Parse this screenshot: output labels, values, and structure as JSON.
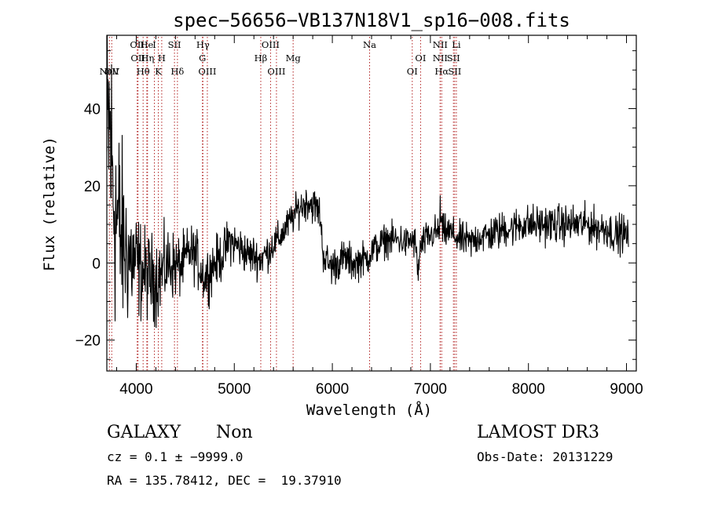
{
  "chart_data": {
    "type": "line",
    "title": "spec−56656−VB137N18V1_sp16−008.fits",
    "xlabel": "Wavelength (Å)",
    "ylabel": "Flux (relative)",
    "xlim": [
      3700,
      9100
    ],
    "ylim": [
      -28,
      59
    ],
    "xticks": [
      4000,
      5000,
      6000,
      7000,
      8000,
      9000
    ],
    "xtick_labels": [
      "4000",
      "5000",
      "6000",
      "7000",
      "8000",
      "9000"
    ],
    "yticks": [
      -20,
      0,
      20,
      40
    ],
    "ytick_labels": [
      "−20",
      "0",
      "20",
      "40"
    ],
    "grid": false,
    "line_color": "#000000",
    "marker_color": "#b22222",
    "spectrum_anchors": {
      "x": [
        3700,
        3720,
        3740,
        3760,
        3800,
        3850,
        3900,
        3950,
        4000,
        4050,
        4100,
        4150,
        4200,
        4250,
        4300,
        4350,
        4400,
        4450,
        4500,
        4550,
        4600,
        4650,
        4700,
        4750,
        4800,
        4850,
        4900,
        4950,
        5000,
        5050,
        5100,
        5150,
        5200,
        5250,
        5270,
        5300,
        5350,
        5400,
        5450,
        5500,
        5550,
        5600,
        5650,
        5700,
        5750,
        5800,
        5850,
        5880,
        5900,
        5950,
        6000,
        6050,
        6100,
        6150,
        6200,
        6250,
        6300,
        6350,
        6400,
        6450,
        6500,
        6550,
        6600,
        6650,
        6700,
        6750,
        6800,
        6850,
        6870,
        6900,
        6950,
        7000,
        7050,
        7090,
        7100,
        7110,
        7130,
        7150,
        7200,
        7250,
        7300,
        7350,
        7400,
        7450,
        7500,
        7550,
        7600,
        7650,
        7700,
        7750,
        7800,
        7850,
        7900,
        7950,
        8000,
        8100,
        8200,
        8300,
        8400,
        8500,
        8600,
        8700,
        8800,
        8900,
        8950,
        9000
      ],
      "y": [
        25,
        35,
        30,
        20,
        12,
        6,
        3,
        1,
        0,
        -2,
        -3,
        -4,
        -4,
        -3,
        -1,
        0,
        -1,
        -1,
        1,
        3,
        2,
        -1,
        -4,
        -2,
        0,
        1,
        3,
        6,
        5,
        4,
        3,
        2,
        2,
        1,
        1,
        2,
        3,
        5,
        6,
        8,
        10,
        12,
        14,
        15,
        16,
        15,
        14,
        12,
        3,
        0,
        -1,
        0,
        1,
        1,
        0,
        0,
        1,
        1,
        3,
        4,
        5,
        6,
        6,
        6,
        6,
        5,
        6,
        5,
        -3,
        4,
        6,
        7,
        8,
        8,
        14,
        10,
        8,
        8,
        8,
        7,
        6,
        6,
        5,
        6,
        7,
        7,
        7,
        8,
        8,
        9,
        9,
        9,
        10,
        10,
        10,
        10,
        10,
        10,
        10,
        10,
        10,
        9,
        9,
        7,
        8,
        7
      ]
    },
    "spectrum_noise": {
      "x": [
        3700,
        3800,
        3900,
        4000,
        4100,
        4200,
        4300,
        4400,
        4500,
        4700,
        5000,
        5500,
        6000,
        6500,
        7000,
        8000,
        9000
      ],
      "amp": [
        30,
        22,
        14,
        10,
        8,
        8,
        7,
        6,
        5,
        5,
        4,
        3,
        3.5,
        3,
        3,
        3.5,
        3.5
      ]
    },
    "spectral_lines": [
      {
        "name": "NeV",
        "wavelength": 3726,
        "row": 3
      },
      {
        "name": "OII",
        "wavelength": 3750,
        "row": 3
      },
      {
        "name": "OII",
        "wavelength": 4010,
        "row": 1
      },
      {
        "name": "OII",
        "wavelength": 4018,
        "row": 2
      },
      {
        "name": "Hθ",
        "wavelength": 4070,
        "row": 3
      },
      {
        "name": "He",
        "wavelength": 4108,
        "row": 1
      },
      {
        "name": "Hη",
        "wavelength": 4115,
        "row": 2
      },
      {
        "name": "I",
        "wavelength": 4185,
        "row": 1
      },
      {
        "name": "K",
        "wavelength": 4225,
        "row": 3
      },
      {
        "name": "H",
        "wavelength": 4260,
        "row": 2
      },
      {
        "name": "SII",
        "wavelength": 4390,
        "row": 1
      },
      {
        "name": "Hδ",
        "wavelength": 4420,
        "row": 3
      },
      {
        "name": "Hγ",
        "wavelength": 4680,
        "row": 1
      },
      {
        "name": "G",
        "wavelength": 4675,
        "row": 2
      },
      {
        "name": "OIII",
        "wavelength": 4725,
        "row": 3
      },
      {
        "name": "Hβ",
        "wavelength": 5270,
        "row": 2
      },
      {
        "name": "OIII",
        "wavelength": 5370,
        "row": 1
      },
      {
        "name": "OIII",
        "wavelength": 5430,
        "row": 3
      },
      {
        "name": "Mg",
        "wavelength": 5600,
        "row": 2
      },
      {
        "name": "Na",
        "wavelength": 6380,
        "row": 1
      },
      {
        "name": "OI",
        "wavelength": 6900,
        "row": 2
      },
      {
        "name": "OI",
        "wavelength": 6815,
        "row": 3
      },
      {
        "name": "NII",
        "wavelength": 7100,
        "row": 1
      },
      {
        "name": "NII",
        "wavelength": 7100,
        "row": 2
      },
      {
        "name": "Hα",
        "wavelength": 7115,
        "row": 3
      },
      {
        "name": "Li",
        "wavelength": 7265,
        "row": 1
      },
      {
        "name": "SII",
        "wavelength": 7235,
        "row": 2
      },
      {
        "name": "SII",
        "wavelength": 7248,
        "row": 3
      }
    ]
  },
  "info": {
    "class": "GALAXY",
    "subclass": "Non",
    "survey": "LAMOST DR3",
    "cz": "cz = 0.1 ± −9999.0",
    "obs_date": "Obs-Date: 20131229",
    "radec": "RA = 135.78412, DEC =  19.37910"
  }
}
